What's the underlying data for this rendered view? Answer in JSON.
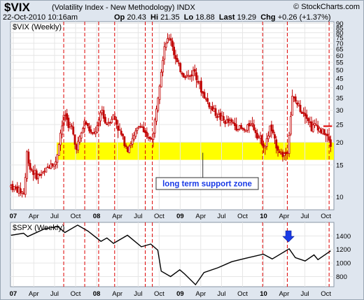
{
  "header": {
    "symbol": "$VIX",
    "name": "(Volatility Index - New Methodology) INDX",
    "date": "22-Oct-2010 10:16am",
    "brand": "© StockCharts.com",
    "quote": [
      {
        "label": "Op",
        "value": "20.43"
      },
      {
        "label": "Hi",
        "value": "21.35"
      },
      {
        "label": "Lo",
        "value": "18.88"
      },
      {
        "label": "Last",
        "value": "19.29"
      },
      {
        "label": "Chg",
        "value": "+0.26 (+1.37%)"
      }
    ]
  },
  "colors": {
    "candle": "#c00000",
    "support_zone": "#ffff00",
    "event_line": "#dd0000",
    "spx_line": "#000000",
    "arrow": "#1a3be6",
    "panel_bg": "#ffffff",
    "frame_bg": "#dfe6ef"
  },
  "chart_data": [
    {
      "type": "candlestick",
      "panel_label": "$VIX (Weekly)",
      "y_scale": "log",
      "y_ticks": [
        10,
        15,
        20,
        25,
        30,
        35,
        40,
        45,
        50,
        55,
        60,
        65,
        70,
        75,
        80,
        85,
        90
      ],
      "ylim": [
        8.5,
        92
      ],
      "x_tick_labels": [
        "07",
        "Apr",
        "Jul",
        "Oct",
        "08",
        "Apr",
        "Jul",
        "Oct",
        "09",
        "Apr",
        "Jul",
        "Oct",
        "10",
        "Apr",
        "Jul",
        "Oct"
      ],
      "x_ticks": [
        "2007-01",
        "2007-04",
        "2007-07",
        "2007-10",
        "2008-01",
        "2008-04",
        "2008-07",
        "2008-10",
        "2009-01",
        "2009-04",
        "2009-07",
        "2009-10",
        "2010-01",
        "2010-04",
        "2010-07",
        "2010-10"
      ],
      "x_range": [
        "2006-12-20",
        "2010-11-05"
      ],
      "vix_path": [
        [
          "2006-12-22",
          11.5
        ],
        [
          "2007-01-15",
          11.0
        ],
        [
          "2007-02-20",
          10.5
        ],
        [
          "2007-02-28",
          18.0
        ],
        [
          "2007-03-15",
          14.5
        ],
        [
          "2007-04-15",
          13.0
        ],
        [
          "2007-05-15",
          13.5
        ],
        [
          "2007-06-15",
          15.5
        ],
        [
          "2007-07-05",
          15.0
        ],
        [
          "2007-07-25",
          22.0
        ],
        [
          "2007-08-15",
          29.0
        ],
        [
          "2007-08-30",
          25.0
        ],
        [
          "2007-09-15",
          24.0
        ],
        [
          "2007-10-01",
          18.5
        ],
        [
          "2007-10-20",
          21.0
        ],
        [
          "2007-11-10",
          26.0
        ],
        [
          "2007-11-25",
          24.0
        ],
        [
          "2007-12-15",
          21.5
        ],
        [
          "2008-01-10",
          25.0
        ],
        [
          "2008-01-22",
          31.0
        ],
        [
          "2008-02-10",
          25.0
        ],
        [
          "2008-03-15",
          28.0
        ],
        [
          "2008-04-10",
          23.0
        ],
        [
          "2008-05-15",
          18.5
        ],
        [
          "2008-06-10",
          21.0
        ],
        [
          "2008-07-10",
          25.5
        ],
        [
          "2008-08-10",
          20.5
        ],
        [
          "2008-09-05",
          22.0
        ],
        [
          "2008-09-20",
          32.0
        ],
        [
          "2008-10-05",
          45.0
        ],
        [
          "2008-10-25",
          70.0
        ],
        [
          "2008-11-20",
          75.0
        ],
        [
          "2008-12-15",
          55.0
        ],
        [
          "2009-01-15",
          47.0
        ],
        [
          "2009-02-10",
          46.0
        ],
        [
          "2009-03-05",
          50.0
        ],
        [
          "2009-04-05",
          38.0
        ],
        [
          "2009-05-15",
          31.0
        ],
        [
          "2009-06-15",
          28.0
        ],
        [
          "2009-07-15",
          26.0
        ],
        [
          "2009-08-15",
          25.5
        ],
        [
          "2009-09-15",
          24.0
        ],
        [
          "2009-10-15",
          23.0
        ],
        [
          "2009-11-05",
          26.0
        ],
        [
          "2009-12-10",
          21.5
        ],
        [
          "2010-01-10",
          19.0
        ],
        [
          "2010-01-30",
          24.5
        ],
        [
          "2010-02-20",
          20.0
        ],
        [
          "2010-03-20",
          17.0
        ],
        [
          "2010-04-15",
          17.5
        ],
        [
          "2010-05-07",
          35.0
        ],
        [
          "2010-05-25",
          33.0
        ],
        [
          "2010-06-15",
          30.0
        ],
        [
          "2010-07-05",
          29.0
        ],
        [
          "2010-07-30",
          24.0
        ],
        [
          "2010-08-20",
          25.0
        ],
        [
          "2010-09-10",
          23.0
        ],
        [
          "2010-09-25",
          22.5
        ],
        [
          "2010-10-10",
          21.0
        ],
        [
          "2010-10-22",
          19.29
        ]
      ],
      "support_zone": {
        "low": 16,
        "high": 20
      },
      "resistance_mark": {
        "from": "2010-09-20",
        "to": "2010-10-28",
        "value": 24.5
      },
      "annotation": {
        "text": "long term support zone",
        "points_to": [
          "2009-04-10",
          17.5
        ]
      },
      "event_lines": [
        "2007-08-10",
        "2007-11-10",
        "2008-01-10",
        "2008-03-20",
        "2008-08-01",
        "2008-09-01",
        "2009-12-28",
        "2010-04-15",
        "2010-10-15"
      ]
    },
    {
      "type": "line",
      "panel_label": "$SPX (Weekly)",
      "y_ticks": [
        800,
        1000,
        1200,
        1400
      ],
      "ylim": [
        650,
        1600
      ],
      "x_tick_labels": [
        "07",
        "Apr",
        "Jul",
        "Oct",
        "08",
        "Apr",
        "Jul",
        "Oct",
        "09",
        "Apr",
        "Jul",
        "Oct",
        "10",
        "Apr",
        "Jul",
        "Oct"
      ],
      "x": [
        "2006-12-22",
        "2007-02-15",
        "2007-03-05",
        "2007-05-15",
        "2007-07-15",
        "2007-08-15",
        "2007-10-10",
        "2007-11-25",
        "2008-01-20",
        "2008-02-15",
        "2008-03-15",
        "2008-05-15",
        "2008-07-15",
        "2008-08-25",
        "2008-09-25",
        "2008-10-10",
        "2008-11-20",
        "2008-12-30",
        "2009-01-20",
        "2009-03-09",
        "2009-04-15",
        "2009-06-15",
        "2009-08-15",
        "2009-10-15",
        "2009-12-31",
        "2010-02-08",
        "2010-04-23",
        "2010-05-20",
        "2010-07-02",
        "2010-08-10",
        "2010-08-27",
        "2010-10-22"
      ],
      "y": [
        1410,
        1440,
        1390,
        1500,
        1540,
        1450,
        1560,
        1470,
        1320,
        1370,
        1290,
        1410,
        1240,
        1280,
        1190,
        880,
        800,
        900,
        840,
        680,
        860,
        930,
        1020,
        1070,
        1130,
        1060,
        1210,
        1080,
        1030,
        1120,
        1050,
        1180
      ],
      "arrow_at": [
        "2010-04-20",
        1300
      ]
    }
  ]
}
